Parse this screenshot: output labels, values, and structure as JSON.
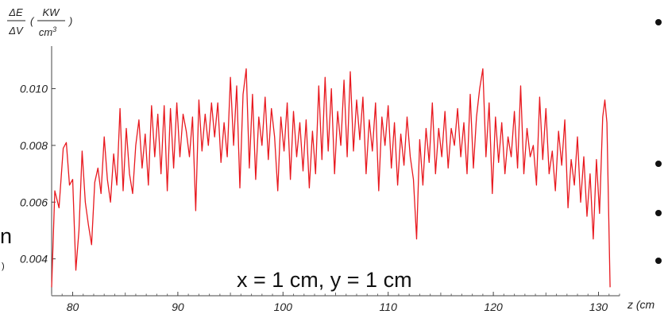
{
  "chart_data": {
    "type": "line",
    "ylabel_num": "ΔE",
    "ylabel_den": "ΔV",
    "ylabel_unit_num": "KW",
    "ylabel_unit_den": "cm",
    "ylabel_unit_den_exp": "3",
    "ylabel_paren_open": "(",
    "ylabel_paren_close": ")",
    "xlabel": "z (cm",
    "xlim": [
      78,
      132
    ],
    "ylim": [
      0.0027,
      0.0115
    ],
    "xticks": [
      80,
      90,
      100,
      110,
      120,
      130
    ],
    "xtick_labels": [
      "80",
      "90",
      "100",
      "110",
      "120",
      "130"
    ],
    "yticks": [
      0.004,
      0.006,
      0.008,
      0.01
    ],
    "ytick_labels": [
      "0.004",
      "0.006",
      "0.008",
      "0.010"
    ],
    "annotation": "x = 1 cm, y = 1 cm",
    "series": [
      {
        "color": "#e8191f",
        "points": [
          [
            78.0,
            0.003
          ],
          [
            78.3,
            0.0064
          ],
          [
            78.7,
            0.0058
          ],
          [
            79.1,
            0.0079
          ],
          [
            79.4,
            0.0081
          ],
          [
            79.7,
            0.0066
          ],
          [
            80.0,
            0.0068
          ],
          [
            80.3,
            0.0036
          ],
          [
            80.6,
            0.005
          ],
          [
            80.9,
            0.0078
          ],
          [
            81.2,
            0.006
          ],
          [
            81.5,
            0.0052
          ],
          [
            81.8,
            0.0045
          ],
          [
            82.1,
            0.0067
          ],
          [
            82.4,
            0.0072
          ],
          [
            82.7,
            0.0063
          ],
          [
            83.0,
            0.0083
          ],
          [
            83.3,
            0.0068
          ],
          [
            83.6,
            0.006
          ],
          [
            83.9,
            0.0077
          ],
          [
            84.2,
            0.0066
          ],
          [
            84.5,
            0.0093
          ],
          [
            84.8,
            0.0064
          ],
          [
            85.1,
            0.0086
          ],
          [
            85.4,
            0.007
          ],
          [
            85.7,
            0.0063
          ],
          [
            86.0,
            0.008
          ],
          [
            86.3,
            0.0089
          ],
          [
            86.6,
            0.0072
          ],
          [
            86.9,
            0.0084
          ],
          [
            87.2,
            0.0066
          ],
          [
            87.5,
            0.0094
          ],
          [
            87.8,
            0.0076
          ],
          [
            88.1,
            0.0091
          ],
          [
            88.4,
            0.007
          ],
          [
            88.7,
            0.0094
          ],
          [
            89.0,
            0.0064
          ],
          [
            89.3,
            0.0093
          ],
          [
            89.6,
            0.0072
          ],
          [
            89.9,
            0.0095
          ],
          [
            90.2,
            0.0076
          ],
          [
            90.5,
            0.0091
          ],
          [
            90.8,
            0.0085
          ],
          [
            91.1,
            0.0076
          ],
          [
            91.4,
            0.009
          ],
          [
            91.7,
            0.0057
          ],
          [
            92.0,
            0.0096
          ],
          [
            92.3,
            0.0078
          ],
          [
            92.6,
            0.0091
          ],
          [
            92.9,
            0.008
          ],
          [
            93.2,
            0.0095
          ],
          [
            93.5,
            0.0083
          ],
          [
            93.8,
            0.0095
          ],
          [
            94.1,
            0.0074
          ],
          [
            94.4,
            0.0088
          ],
          [
            94.7,
            0.0076
          ],
          [
            95.0,
            0.0104
          ],
          [
            95.3,
            0.008
          ],
          [
            95.6,
            0.0101
          ],
          [
            95.9,
            0.0065
          ],
          [
            96.2,
            0.0098
          ],
          [
            96.5,
            0.0107
          ],
          [
            96.8,
            0.0072
          ],
          [
            97.1,
            0.0098
          ],
          [
            97.4,
            0.0068
          ],
          [
            97.7,
            0.009
          ],
          [
            98.0,
            0.008
          ],
          [
            98.3,
            0.0097
          ],
          [
            98.6,
            0.0075
          ],
          [
            98.9,
            0.0093
          ],
          [
            99.2,
            0.0083
          ],
          [
            99.5,
            0.0064
          ],
          [
            99.8,
            0.009
          ],
          [
            100.1,
            0.0078
          ],
          [
            100.4,
            0.0095
          ],
          [
            100.7,
            0.0068
          ],
          [
            101.0,
            0.0092
          ],
          [
            101.3,
            0.0076
          ],
          [
            101.6,
            0.0088
          ],
          [
            101.9,
            0.0071
          ],
          [
            102.2,
            0.0089
          ],
          [
            102.5,
            0.0065
          ],
          [
            102.8,
            0.0085
          ],
          [
            103.1,
            0.007
          ],
          [
            103.4,
            0.0101
          ],
          [
            103.7,
            0.0075
          ],
          [
            104.0,
            0.0104
          ],
          [
            104.3,
            0.0078
          ],
          [
            104.6,
            0.01
          ],
          [
            104.9,
            0.007
          ],
          [
            105.2,
            0.0092
          ],
          [
            105.5,
            0.008
          ],
          [
            105.8,
            0.0103
          ],
          [
            106.1,
            0.0076
          ],
          [
            106.4,
            0.0106
          ],
          [
            106.7,
            0.0078
          ],
          [
            107.0,
            0.0096
          ],
          [
            107.3,
            0.0082
          ],
          [
            107.6,
            0.0097
          ],
          [
            107.9,
            0.007
          ],
          [
            108.2,
            0.0089
          ],
          [
            108.5,
            0.0078
          ],
          [
            108.8,
            0.0095
          ],
          [
            109.1,
            0.0064
          ],
          [
            109.4,
            0.009
          ],
          [
            109.7,
            0.008
          ],
          [
            110.0,
            0.0094
          ],
          [
            110.3,
            0.0072
          ],
          [
            110.6,
            0.0088
          ],
          [
            110.9,
            0.0066
          ],
          [
            111.2,
            0.0084
          ],
          [
            111.5,
            0.0073
          ],
          [
            111.8,
            0.009
          ],
          [
            112.1,
            0.0076
          ],
          [
            112.4,
            0.0068
          ],
          [
            112.7,
            0.0047
          ],
          [
            113.0,
            0.0082
          ],
          [
            113.3,
            0.0066
          ],
          [
            113.6,
            0.0086
          ],
          [
            113.9,
            0.0074
          ],
          [
            114.2,
            0.0095
          ],
          [
            114.5,
            0.007
          ],
          [
            114.8,
            0.0086
          ],
          [
            115.1,
            0.0076
          ],
          [
            115.4,
            0.0092
          ],
          [
            115.7,
            0.0072
          ],
          [
            116.0,
            0.0086
          ],
          [
            116.3,
            0.008
          ],
          [
            116.6,
            0.0093
          ],
          [
            116.9,
            0.0076
          ],
          [
            117.2,
            0.0088
          ],
          [
            117.5,
            0.007
          ],
          [
            117.8,
            0.0098
          ],
          [
            118.1,
            0.0072
          ],
          [
            118.4,
            0.009
          ],
          [
            118.7,
            0.01
          ],
          [
            119.0,
            0.0107
          ],
          [
            119.3,
            0.0076
          ],
          [
            119.6,
            0.0095
          ],
          [
            119.9,
            0.0063
          ],
          [
            120.2,
            0.009
          ],
          [
            120.5,
            0.0074
          ],
          [
            120.8,
            0.0088
          ],
          [
            121.1,
            0.007
          ],
          [
            121.4,
            0.0083
          ],
          [
            121.7,
            0.0076
          ],
          [
            122.0,
            0.0092
          ],
          [
            122.3,
            0.0072
          ],
          [
            122.6,
            0.0101
          ],
          [
            122.9,
            0.007
          ],
          [
            123.2,
            0.0086
          ],
          [
            123.5,
            0.0076
          ],
          [
            123.8,
            0.008
          ],
          [
            124.1,
            0.0066
          ],
          [
            124.4,
            0.0097
          ],
          [
            124.7,
            0.0075
          ],
          [
            125.0,
            0.0093
          ],
          [
            125.3,
            0.007
          ],
          [
            125.6,
            0.0078
          ],
          [
            125.9,
            0.0064
          ],
          [
            126.2,
            0.0085
          ],
          [
            126.5,
            0.0073
          ],
          [
            126.8,
            0.0089
          ],
          [
            127.1,
            0.0058
          ],
          [
            127.4,
            0.0075
          ],
          [
            127.7,
            0.0066
          ],
          [
            128.0,
            0.0083
          ],
          [
            128.3,
            0.006
          ],
          [
            128.6,
            0.0076
          ],
          [
            128.9,
            0.0055
          ],
          [
            129.2,
            0.007
          ],
          [
            129.5,
            0.0047
          ],
          [
            129.8,
            0.0075
          ],
          [
            130.1,
            0.0056
          ],
          [
            130.4,
            0.009
          ],
          [
            130.6,
            0.0096
          ],
          [
            130.8,
            0.0088
          ],
          [
            131.1,
            0.003
          ]
        ]
      }
    ]
  },
  "side_text": {
    "left_fragment": "n",
    "left_small_fragment": ")"
  },
  "bullets_count": 4
}
